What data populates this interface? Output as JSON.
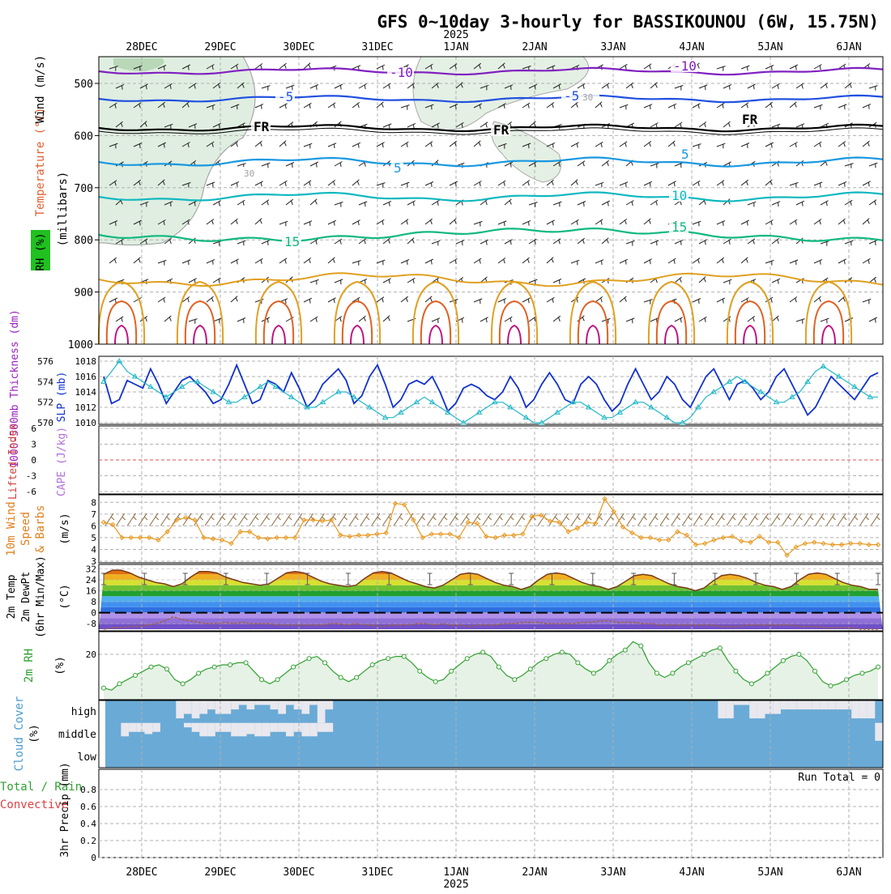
{
  "title": "GFS 0~10day 3-hourly for BASSIKOUNOU (6W, 15.75N)",
  "year_label": "2025",
  "dates": [
    "28DEC",
    "29DEC",
    "30DEC",
    "31DEC",
    "1JAN",
    "2JAN",
    "3JAN",
    "4JAN",
    "5JAN",
    "6JAN"
  ],
  "panels": {
    "upper": {
      "ylabel": "(millibars)",
      "side_labels": [
        "Wind (m/s)",
        "Temperature (°C)",
        "RH (%)"
      ],
      "yticks": [
        "500",
        "600",
        "700",
        "800",
        "900",
        "1000"
      ],
      "contour_labels": [
        "-10",
        "-10",
        "-5",
        "-5",
        "FR",
        "FR",
        "FR",
        "5",
        "5",
        "10",
        "15",
        "15",
        "30",
        "30"
      ]
    },
    "thick": {
      "left_label": "1000-500mb Thickness (dm)",
      "right_label": "SLP (mb)",
      "left_ticks": [
        "576",
        "574",
        "572",
        "570"
      ],
      "right_ticks": [
        "1018",
        "1016",
        "1014",
        "1012",
        "1010"
      ]
    },
    "li": {
      "left_label": "Lifted Index",
      "right_label": "CAPE (J/kg)",
      "yticks": [
        "6",
        "3",
        "0",
        "-3",
        "-6"
      ]
    },
    "wind10": {
      "labels": [
        "10m Wind",
        "Speed",
        "& Barbs"
      ],
      "unit": "(m/s)",
      "yticks": [
        "8",
        "7",
        "6",
        "5",
        "4",
        "3"
      ]
    },
    "temp2m": {
      "labels": [
        "2m Temp",
        "2m DewPt",
        "(6hr Min/Max)"
      ],
      "unit": "(°C)",
      "yticks": [
        "32",
        "24",
        "16",
        "8",
        "0",
        "-8"
      ]
    },
    "rh2m": {
      "label": "2m RH",
      "unit": "(%)",
      "yticks": [
        "20"
      ]
    },
    "cloud": {
      "label": "Cloud Cover",
      "unit": "(%)",
      "levels": [
        "high",
        "middle",
        "low"
      ]
    },
    "precip": {
      "labels": [
        "Total / Rain",
        "Convective"
      ],
      "ylabel": "3hr Precip (mm)",
      "yticks": [
        "0.8",
        "0.6",
        "0.4",
        "0.2",
        "0"
      ],
      "run_total": "Run Total = 0"
    }
  },
  "colors": {
    "slp": "#1030d0",
    "thickness": "#20b8c8",
    "wind_speed": "#e89820",
    "rh_line": "#30a030",
    "cloud_fill": "#6aaad6",
    "temp_label": "#e06030",
    "grid": "#b0b0b0"
  },
  "chart_data": [
    {
      "type": "line",
      "title": "1000-500mb Thickness (dm) / SLP (mb)",
      "series": [
        {
          "name": "SLP (mb)",
          "axis": "right",
          "values": [
            1016,
            1012.5,
            1013,
            1015.5,
            1015,
            1014.5,
            1017,
            1015,
            1012.5,
            1014,
            1015.5,
            1016,
            1015,
            1014,
            1012.5,
            1013,
            1015,
            1017.5,
            1015,
            1012.5,
            1013,
            1015.5,
            1015,
            1014,
            1016.5,
            1014.5,
            1012,
            1013,
            1015,
            1016,
            1017,
            1015.5,
            1012.5,
            1013.5,
            1016,
            1017.5,
            1015,
            1012,
            1013,
            1015,
            1015.5,
            1015,
            1016,
            1014,
            1011.5,
            1012.5,
            1014.5,
            1015,
            1014.5,
            1013.5,
            1013,
            1014,
            1016,
            1014.5,
            1012,
            1013,
            1015,
            1016.5,
            1015,
            1013,
            1012.5,
            1015,
            1016,
            1015,
            1013,
            1011.5,
            1012.5,
            1015,
            1017,
            1015,
            1013,
            1014,
            1016,
            1015,
            1013,
            1012,
            1014,
            1016,
            1017,
            1015,
            1013,
            1015,
            1015.5,
            1014.5,
            1013,
            1014,
            1016,
            1017,
            1015,
            1013,
            1011,
            1012,
            1014,
            1016,
            1015,
            1014,
            1013,
            1014.5,
            1016,
            1016.5
          ]
        },
        {
          "name": "1000-500mb Thickness (dm)",
          "axis": "left",
          "values": [
            574,
            575,
            576,
            575,
            574.5,
            574,
            573.5,
            573,
            572.5,
            573,
            573.5,
            574,
            574,
            573.5,
            573,
            572.5,
            572,
            572,
            572.5,
            573,
            573.5,
            574,
            573.5,
            573,
            572.5,
            572,
            571.5,
            571.5,
            572,
            572.5,
            573,
            573,
            572.5,
            572,
            571.5,
            571,
            570.5,
            570.5,
            571,
            571.5,
            572,
            572.5,
            572,
            571.5,
            571,
            570.5,
            570,
            570.5,
            571,
            571.5,
            572,
            572,
            571.5,
            571,
            570.5,
            570,
            570,
            570.5,
            571,
            571.5,
            572,
            572,
            571.5,
            571,
            570.5,
            570.5,
            571,
            571.5,
            572,
            572,
            571.5,
            571,
            570.5,
            570,
            570,
            570.5,
            571.5,
            572.5,
            573,
            573.5,
            574,
            574.5,
            574,
            573.5,
            573,
            572.5,
            572,
            572,
            572.5,
            573,
            574,
            575,
            575.5,
            575,
            574.5,
            574,
            573.5,
            573,
            572.5,
            572.5
          ]
        }
      ],
      "ylim_left": [
        570,
        576
      ],
      "ylim_right": [
        1010,
        1018
      ]
    },
    {
      "type": "line",
      "title": "10m Wind Speed",
      "series": [
        {
          "name": "Speed (m/s)",
          "values": [
            6.3,
            6.1,
            5,
            5,
            5,
            5,
            4.8,
            5.5,
            6.5,
            6.7,
            6.5,
            5,
            4.9,
            4.8,
            4.5,
            5.5,
            5.5,
            5,
            4.9,
            5,
            5,
            5,
            6.5,
            6.5,
            6.4,
            6.5,
            5.2,
            5.1,
            5.2,
            5.2,
            5.3,
            5.4,
            7.9,
            7.8,
            6.5,
            5,
            5.3,
            5.3,
            5.3,
            5,
            6.3,
            6.2,
            5.1,
            5,
            5.2,
            5.2,
            5.3,
            6.8,
            6.9,
            6.4,
            6.3,
            5.5,
            5.8,
            6.3,
            6.2,
            8.3,
            7.2,
            5.9,
            5.4,
            5,
            5,
            4.8,
            4.8,
            5.5,
            5.2,
            4.4,
            4.5,
            4.8,
            5,
            5.1,
            4.7,
            4.6,
            5.1,
            4.6,
            4.6,
            3.5,
            4.2,
            4.5,
            4.6,
            4.5,
            4.4,
            4.4,
            4.5,
            4.5,
            4.4,
            4.4
          ]
        }
      ],
      "ylim": [
        3,
        8.5
      ]
    },
    {
      "type": "area",
      "title": "2m Temp / 2m DewPt",
      "series": [
        {
          "name": "2m Temp (°C)",
          "values": [
            28,
            31,
            31,
            29,
            26,
            24,
            22,
            21,
            19,
            21,
            26,
            30,
            30,
            29,
            26,
            24,
            22,
            21,
            20,
            21,
            25,
            29,
            30,
            29,
            26,
            23,
            21,
            20,
            19,
            20,
            25,
            29,
            30,
            29,
            26,
            23,
            21,
            19,
            18,
            20,
            24,
            28,
            29,
            28,
            25,
            22,
            20,
            19,
            17,
            19,
            24,
            28,
            29,
            28,
            25,
            22,
            20,
            19,
            17,
            19,
            23,
            27,
            28,
            27,
            24,
            21,
            19,
            18,
            16,
            18,
            23,
            27,
            28,
            27,
            25,
            22,
            20,
            19,
            17,
            19,
            24,
            28,
            29,
            28,
            25,
            22,
            20,
            19,
            17,
            17
          ]
        },
        {
          "name": "2m DewPt (°C)",
          "values": [
            -12,
            -11,
            -11,
            -10,
            -10,
            -9,
            -8,
            -6,
            -3,
            -5,
            -6,
            -7,
            -8,
            -8,
            -7,
            -8,
            -7,
            -8,
            -8,
            -8,
            -9,
            -9,
            -9,
            -9,
            -9,
            -9,
            -8,
            -8,
            -9,
            -8,
            -9,
            -9,
            -10,
            -9,
            -9,
            -9,
            -8,
            -8,
            -9,
            -8,
            -9,
            -9,
            -10,
            -9,
            -9,
            -9,
            -8,
            -8,
            -7,
            -7,
            -7,
            -8,
            -8,
            -8,
            -8,
            -7,
            -7,
            -6,
            -6,
            -7,
            -7,
            -7,
            -8,
            -8,
            -9,
            -9,
            -9,
            -9,
            -9,
            -9,
            -9,
            -10,
            -10,
            -10,
            -9,
            -9,
            -9,
            -9,
            -9,
            -9,
            -10,
            -10,
            -10,
            -11,
            -11,
            -11,
            -11,
            -12,
            -12,
            -12
          ]
        }
      ],
      "ylim": [
        -12,
        34
      ]
    },
    {
      "type": "line",
      "title": "2m RH (%)",
      "series": [
        {
          "name": "2m RH (%)",
          "values": [
            4,
            3,
            6,
            8,
            10,
            12,
            14,
            15,
            13,
            8,
            6,
            8,
            11,
            13,
            14,
            15,
            15,
            16,
            16,
            12,
            8,
            6,
            8,
            11,
            14,
            16,
            18,
            19,
            16,
            12,
            9,
            7,
            9,
            12,
            15,
            17,
            18,
            19,
            19,
            16,
            12,
            9,
            7,
            8,
            12,
            15,
            18,
            20,
            21,
            19,
            14,
            10,
            8,
            10,
            13,
            16,
            18,
            20,
            21,
            20,
            16,
            13,
            11,
            13,
            17,
            20,
            22,
            26,
            24,
            16,
            11,
            9,
            11,
            14,
            16,
            18,
            20,
            22,
            23,
            17,
            12,
            8,
            6,
            8,
            11,
            14,
            17,
            19,
            20,
            17,
            12,
            7,
            5,
            6,
            8,
            10,
            11,
            12,
            14
          ]
        }
      ],
      "ylim": [
        0,
        30
      ]
    },
    {
      "type": "bar",
      "title": "Cloud Cover (%)",
      "series": [
        {
          "name": "high",
          "values": [
            0,
            0,
            0,
            0,
            0,
            0,
            0,
            0,
            0,
            80,
            60,
            80,
            60,
            40,
            60,
            60,
            40,
            20,
            40,
            20,
            20,
            40,
            60,
            20,
            40,
            60,
            20,
            100,
            40,
            0,
            0,
            0,
            0,
            0,
            0,
            0,
            0,
            0,
            0,
            0,
            0,
            0,
            0,
            0,
            0,
            0,
            0,
            0,
            0,
            0,
            0,
            0,
            0,
            0,
            0,
            0,
            0,
            0,
            0,
            0,
            0,
            0,
            0,
            0,
            0,
            0,
            0,
            0,
            0,
            0,
            0,
            0,
            0,
            0,
            0,
            0,
            0,
            0,
            80,
            80,
            20,
            20,
            80,
            80,
            60,
            60,
            40,
            40,
            40,
            40,
            40,
            40,
            40,
            40,
            40,
            80,
            80,
            80,
            0
          ]
        },
        {
          "name": "middle",
          "values": [
            0,
            0,
            60,
            40,
            40,
            50,
            40,
            0,
            0,
            0,
            20,
            40,
            60,
            60,
            40,
            40,
            60,
            60,
            50,
            60,
            60,
            40,
            40,
            60,
            40,
            60,
            60,
            40,
            40,
            0,
            0,
            0,
            0,
            0,
            0,
            0,
            0,
            0,
            0,
            0,
            0,
            0,
            0,
            0,
            0,
            0,
            0,
            0,
            0,
            0,
            0,
            0,
            0,
            0,
            0,
            0,
            0,
            0,
            0,
            0,
            0,
            0,
            0,
            0,
            0,
            0,
            0,
            0,
            0,
            0,
            0,
            0,
            0,
            0,
            0,
            0,
            0,
            0,
            0,
            0,
            0,
            0,
            0,
            0,
            0,
            0,
            0,
            0,
            0,
            0,
            0,
            0,
            0,
            0,
            0,
            0,
            0,
            0,
            80
          ]
        },
        {
          "name": "low",
          "values": [
            0,
            0,
            0,
            0,
            0,
            0,
            0,
            0,
            0,
            0,
            0,
            0,
            0,
            0,
            0,
            0,
            0,
            0,
            0,
            0,
            0,
            0,
            0,
            0,
            0,
            0,
            0,
            0,
            0,
            0,
            0,
            0,
            0,
            0,
            0,
            0,
            0,
            0,
            0,
            0,
            0,
            0,
            0,
            0,
            0,
            0,
            0,
            0,
            0,
            0,
            0,
            0,
            0,
            0,
            0,
            0,
            0,
            0,
            0,
            0,
            0,
            0,
            0,
            0,
            0,
            0,
            0,
            0,
            0,
            0,
            0,
            0,
            0,
            0,
            0,
            0,
            0,
            0,
            0,
            0,
            0,
            0,
            0,
            0,
            0,
            0,
            0,
            0,
            0,
            0,
            0,
            0,
            0,
            0,
            0,
            0,
            0,
            0,
            0
          ]
        }
      ],
      "ylim": [
        0,
        100
      ]
    },
    {
      "type": "bar",
      "title": "3hr Precip (mm)",
      "series": [
        {
          "name": "Total / Rain",
          "values": []
        },
        {
          "name": "Convective",
          "values": []
        }
      ],
      "ylim": [
        0,
        1
      ]
    }
  ]
}
